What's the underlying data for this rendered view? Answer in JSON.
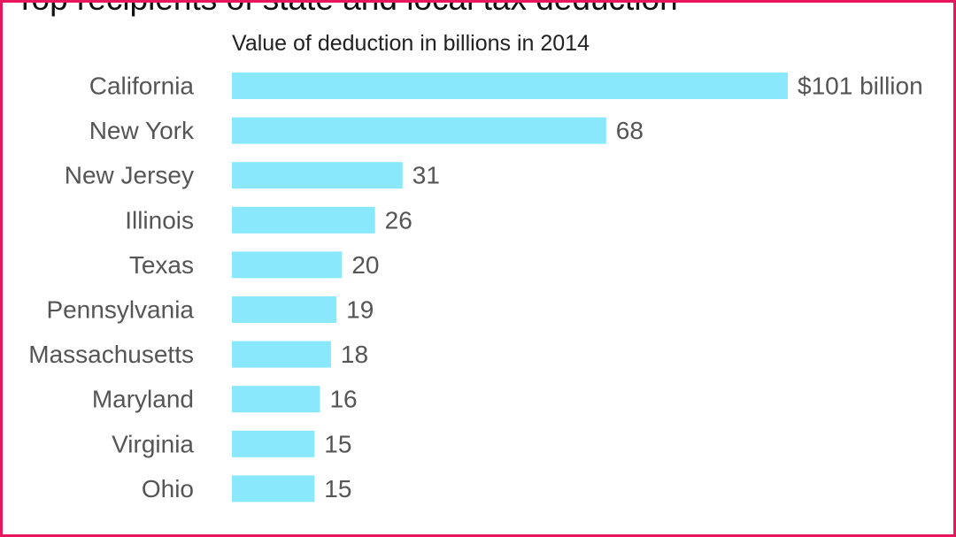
{
  "chart_data": {
    "type": "bar",
    "orientation": "horizontal",
    "title": "Top recipients of state and local tax deduction",
    "subtitle": "Value of deduction in billions in 2014",
    "categories": [
      "California",
      "New York",
      "New Jersey",
      "Illinois",
      "Texas",
      "Pennsylvania",
      "Massachusetts",
      "Maryland",
      "Virginia",
      "Ohio"
    ],
    "values": [
      101,
      68,
      31,
      26,
      20,
      19,
      18,
      16,
      15,
      15
    ],
    "value_labels": [
      "$101 billion",
      "68",
      "31",
      "26",
      "20",
      "19",
      "18",
      "16",
      "15",
      "15"
    ],
    "xlim": [
      0,
      101
    ],
    "grid": false,
    "bar_color": "#8ae8fc",
    "accent_border_color": "#e8175d"
  }
}
